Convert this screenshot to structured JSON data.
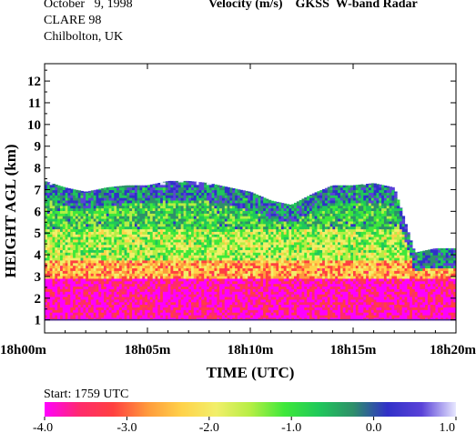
{
  "header": {
    "date": "October   9, 1998",
    "campaign": "CLARE 98",
    "location": "Chilbolton, UK",
    "title": "Velocity (m/s)    GKSS  W-band Radar"
  },
  "start_label": "Start: 1759 UTC",
  "chart_data": {
    "type": "heatmap",
    "title": "Velocity (m/s)    GKSS  W-band Radar",
    "xlabel": "TIME (UTC)",
    "ylabel": "HEIGHT AGL (km)",
    "x_ticks": [
      "18h00m",
      "18h05m",
      "18h10m",
      "18h15m",
      "18h20m"
    ],
    "x_range_minutes": [
      0,
      20
    ],
    "y_ticks": [
      1,
      2,
      3,
      4,
      5,
      6,
      7,
      8,
      9,
      10,
      11,
      12
    ],
    "ylim": [
      0.4,
      12.8
    ],
    "colorbar": {
      "ticks": [
        "-4.0",
        "-3.0",
        "-2.0",
        "-1.0",
        "0.0",
        "1.0"
      ],
      "range": [
        -4.0,
        1.0
      ],
      "colors": [
        "#ff00ff",
        "#ff2a6e",
        "#ff4040",
        "#ff9a3c",
        "#ffd24a",
        "#f2ef6a",
        "#b6ee45",
        "#3ee83a",
        "#1fc85a",
        "#2e8f6a",
        "#3030c8",
        "#5a42d8",
        "#e8e8ff"
      ]
    },
    "layers": [
      {
        "description_height_km": [
          1.0,
          2.9
        ],
        "velocity_ms": -3.8
      },
      {
        "description_height_km": [
          2.9,
          3.7
        ],
        "velocity_ms": -2.6
      },
      {
        "description_height_km": [
          3.7,
          5.2
        ],
        "velocity_ms": -1.5
      },
      {
        "description_height_km": [
          5.2,
          7.2
        ],
        "velocity_ms": -0.8
      }
    ],
    "echo_top_km": [
      [
        0,
        7.4
      ],
      [
        1,
        7.1
      ],
      [
        2,
        6.9
      ],
      [
        3,
        7.1
      ],
      [
        4,
        7.2
      ],
      [
        5,
        7.2
      ],
      [
        6,
        7.4
      ],
      [
        7,
        7.4
      ],
      [
        8,
        7.3
      ],
      [
        9,
        7.1
      ],
      [
        10,
        6.9
      ],
      [
        11,
        6.5
      ],
      [
        12,
        6.3
      ],
      [
        13,
        6.8
      ],
      [
        14,
        7.2
      ],
      [
        15,
        7.2
      ],
      [
        16,
        7.3
      ],
      [
        17,
        7.1
      ],
      [
        18,
        4.1
      ],
      [
        19,
        4.3
      ],
      [
        20,
        4.3
      ]
    ]
  }
}
